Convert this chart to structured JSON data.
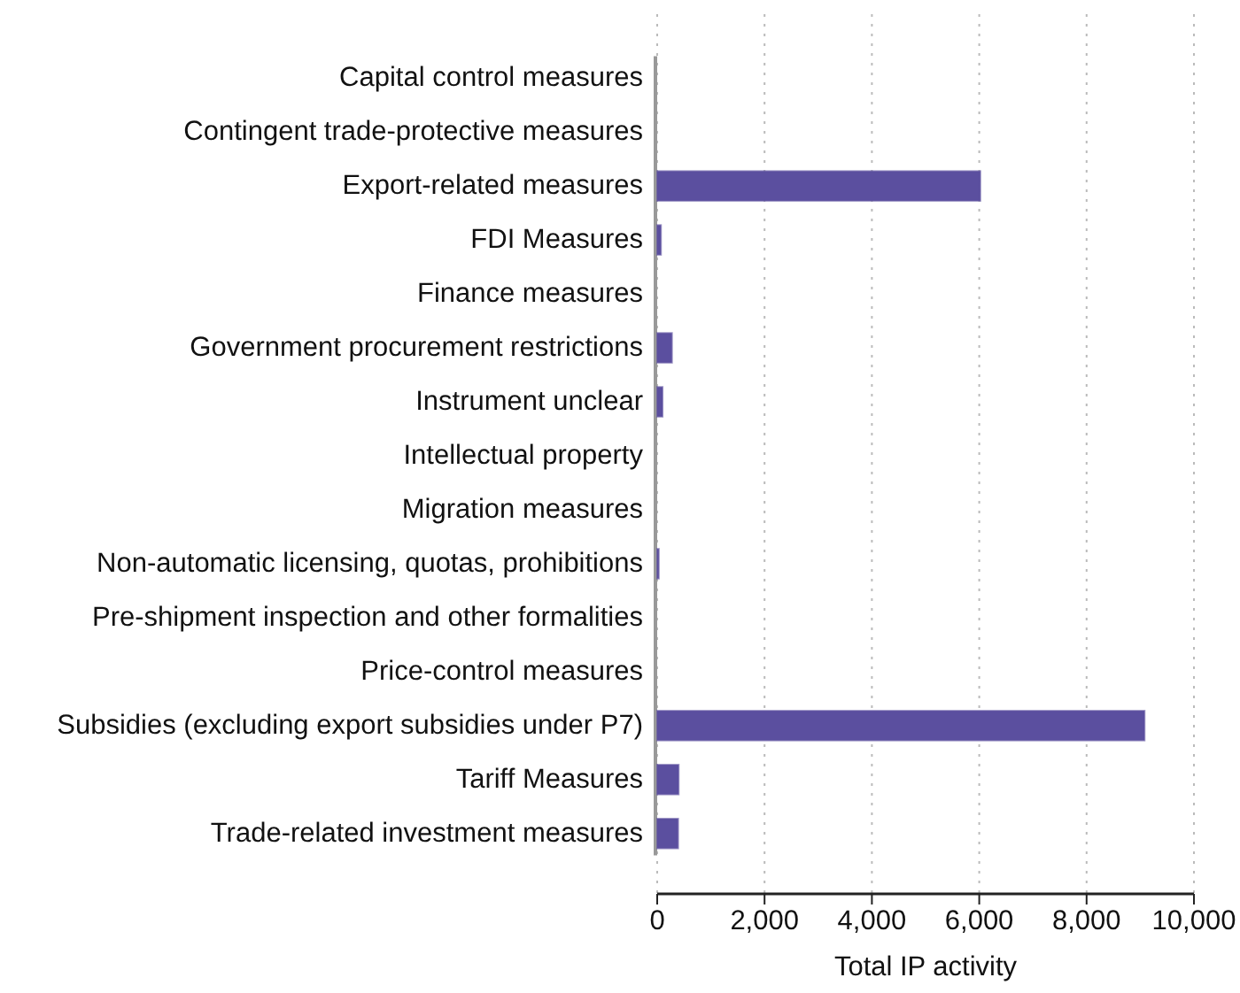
{
  "chart_data": {
    "type": "bar",
    "orientation": "horizontal",
    "categories": [
      "Capital control measures",
      "Contingent trade-protective measures",
      "Export-related measures",
      "FDI Measures",
      "Finance measures",
      "Government procurement restrictions",
      "Instrument unclear",
      "Intellectual property",
      "Migration measures",
      "Non-automatic licensing, quotas, prohibitions",
      "Pre-shipment inspection and other formalities",
      "Price-control measures",
      "Subsidies (excluding export subsidies under P7)",
      "Tariff Measures",
      "Trade-related investment measures"
    ],
    "values": [
      0,
      0,
      6020,
      70,
      0,
      275,
      100,
      0,
      0,
      30,
      0,
      0,
      9080,
      400,
      390
    ],
    "color": "#5b4f9f",
    "xlabel": "Total IP activity",
    "xlim": [
      0,
      10000
    ],
    "xticks": [
      {
        "value": 0,
        "label": "0"
      },
      {
        "value": 2000,
        "label": "2,000"
      },
      {
        "value": 4000,
        "label": "4,000"
      },
      {
        "value": 6000,
        "label": "6,000"
      },
      {
        "value": 8000,
        "label": "8,000"
      },
      {
        "value": 10000,
        "label": "10,000"
      }
    ],
    "grid": "x"
  }
}
